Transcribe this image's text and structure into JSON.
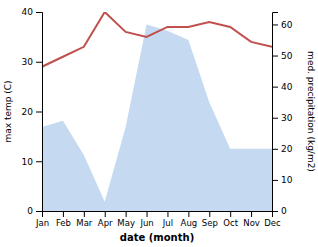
{
  "chart_data": {
    "type": "line",
    "xlabel": "date (month)",
    "ylabel": "max temp (C)",
    "y2label": "med. precipitation (kg/m2)",
    "categories": [
      "Jan",
      "Feb",
      "Mar",
      "Apr",
      "May",
      "Jun",
      "Jul",
      "Aug",
      "Sep",
      "Oct",
      "Nov",
      "Dec"
    ],
    "series": [
      {
        "type": "line",
        "color": "#c0504d",
        "values": [
          29,
          31,
          33,
          40,
          36,
          35,
          37,
          37,
          38,
          37,
          34,
          33
        ]
      },
      {
        "type": "area",
        "axis": "y2",
        "color": "#c5d9f1",
        "values": [
          27,
          29,
          18,
          3,
          27,
          60,
          58,
          55,
          35,
          20,
          20,
          20
        ]
      }
    ],
    "ylim": [
      0,
      40
    ],
    "yticks": [
      0,
      10,
      20,
      30,
      40
    ],
    "y2lim": [
      0,
      64
    ],
    "y2ticks": [
      0,
      10,
      20,
      30,
      40,
      50,
      60
    ],
    "grid": false
  }
}
